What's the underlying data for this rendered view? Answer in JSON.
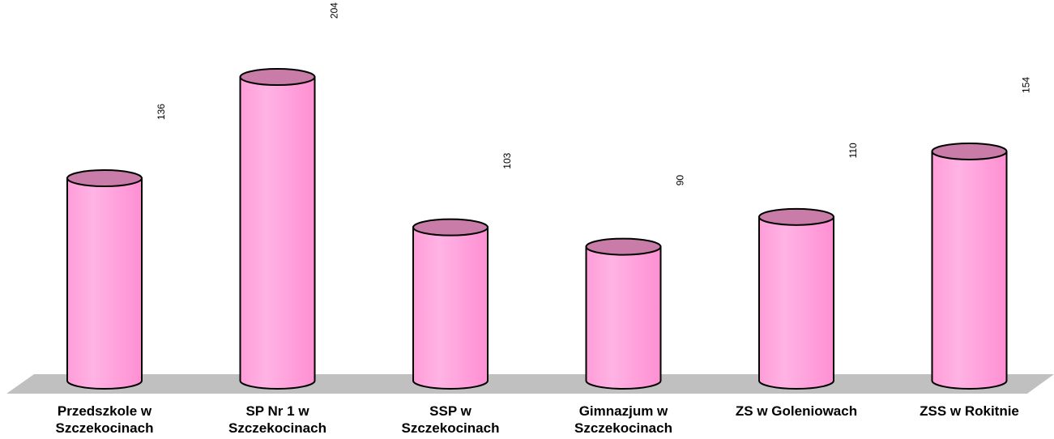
{
  "chart_data": {
    "type": "bar",
    "bar_shape": "cylinder",
    "categories": [
      "Przedszkole w\nSzczekocinach",
      "SP Nr 1 w\nSzczekocinach",
      "SSP w\nSzczekocinach",
      "Gimnazjum w\nSzczekocinach",
      "ZS w Goleniowach",
      "ZSS w Rokitnie"
    ],
    "values": [
      136,
      204,
      103,
      90,
      110,
      154
    ],
    "value_labels": [
      "136",
      "204",
      "103",
      "90",
      "110",
      "154"
    ],
    "value_label_orientation": "vertical",
    "title": "",
    "xlabel": "",
    "ylabel": "",
    "ylim": [
      0,
      220
    ],
    "grid": false,
    "legend": "none",
    "colors": {
      "bar_side": "#ff9dd8",
      "bar_top": "#c97ca8",
      "bar_outline": "#000000",
      "floor": "#c0c0c0"
    }
  }
}
